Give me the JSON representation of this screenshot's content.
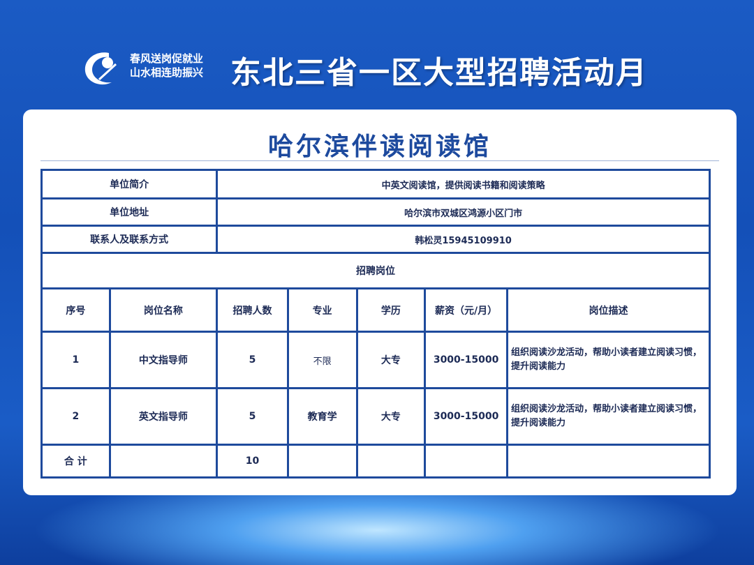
{
  "header": {
    "slogan_line1": "春风送岗促就业",
    "slogan_line2": "山水相连助振兴",
    "title": "东北三省一区大型招聘活动月"
  },
  "company": {
    "name": "哈尔滨伴读阅读馆",
    "info": [
      {
        "label": "单位简介",
        "value": "中英文阅读馆，提供阅读书籍和阅读策略"
      },
      {
        "label": "单位地址",
        "value": "哈尔滨市双城区鸿源小区门市"
      },
      {
        "label": "联系人及联系方式",
        "value": "韩松灵15945109910"
      }
    ],
    "section_title": "招聘岗位"
  },
  "jobs": {
    "columns": [
      "序号",
      "岗位名称",
      "招聘人数",
      "专业",
      "学历",
      "薪资（元/月）",
      "岗位描述"
    ],
    "rows": [
      [
        "1",
        "中文指导师",
        "5",
        "不限",
        "大专",
        "3000-15000",
        "组织阅读沙龙活动，帮助小读者建立阅读习惯，提升阅读能力"
      ],
      [
        "2",
        "英文指导师",
        "5",
        "教育学",
        "大专",
        "3000-15000",
        "组织阅读沙龙活动，帮助小读者建立阅读习惯，提升阅读能力"
      ]
    ],
    "total": {
      "label": "合 计",
      "count": "10"
    }
  }
}
